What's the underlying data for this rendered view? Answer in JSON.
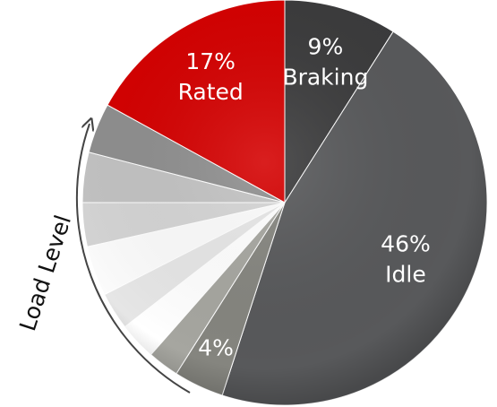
{
  "chart_data": {
    "type": "pie",
    "categories": [
      "Braking",
      "Idle",
      null,
      null,
      null,
      null,
      null,
      null,
      null,
      null,
      "Rated"
    ],
    "values": [
      9,
      46,
      4,
      2.5,
      3,
      3,
      4,
      3.5,
      4,
      4,
      17
    ],
    "value_labels": [
      "9%",
      "46%",
      "4%",
      null,
      null,
      null,
      null,
      null,
      null,
      null,
      "17%"
    ],
    "colors": [
      "#3b3b3c",
      "#58595b",
      "#85857f",
      "#a6a6a0",
      "#ffffff",
      "#e6e6e6",
      "#fbfbfb",
      "#d4d4d4",
      "#c2c2c2",
      "#8e8e8e",
      "#d40000"
    ],
    "annotations": [
      "Load Level"
    ]
  }
}
